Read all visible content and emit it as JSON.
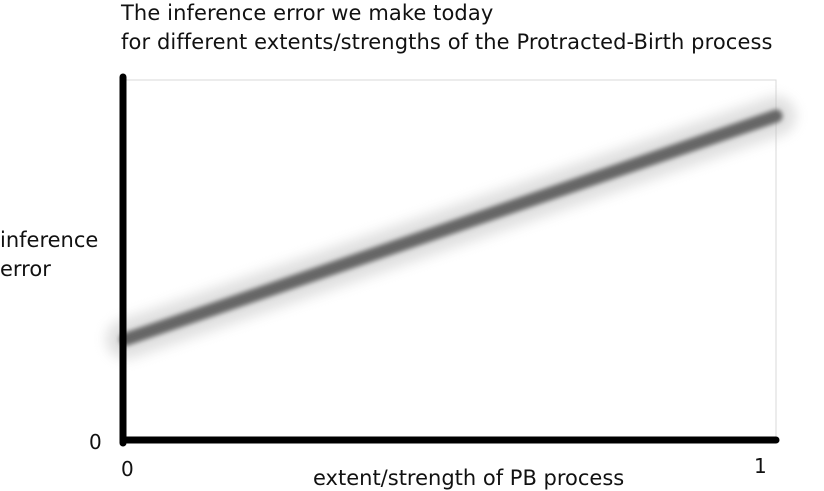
{
  "chart_data": {
    "type": "line",
    "title_lines": [
      "The inference error we make today",
      "for different extents/strengths of the  Protracted-Birth process"
    ],
    "xlabel": "extent/strength of  PB process",
    "ylabel_lines": [
      "inference",
      "error"
    ],
    "x_ticks": [
      "0",
      "1"
    ],
    "y_ticks": [
      "0"
    ],
    "xlim": [
      0,
      1
    ],
    "ylim": [
      0,
      1
    ],
    "grid": false,
    "legend": "none",
    "series": [
      {
        "x": [
          0,
          1
        ],
        "y": [
          0.28,
          0.9
        ],
        "color": "#666666"
      }
    ]
  }
}
